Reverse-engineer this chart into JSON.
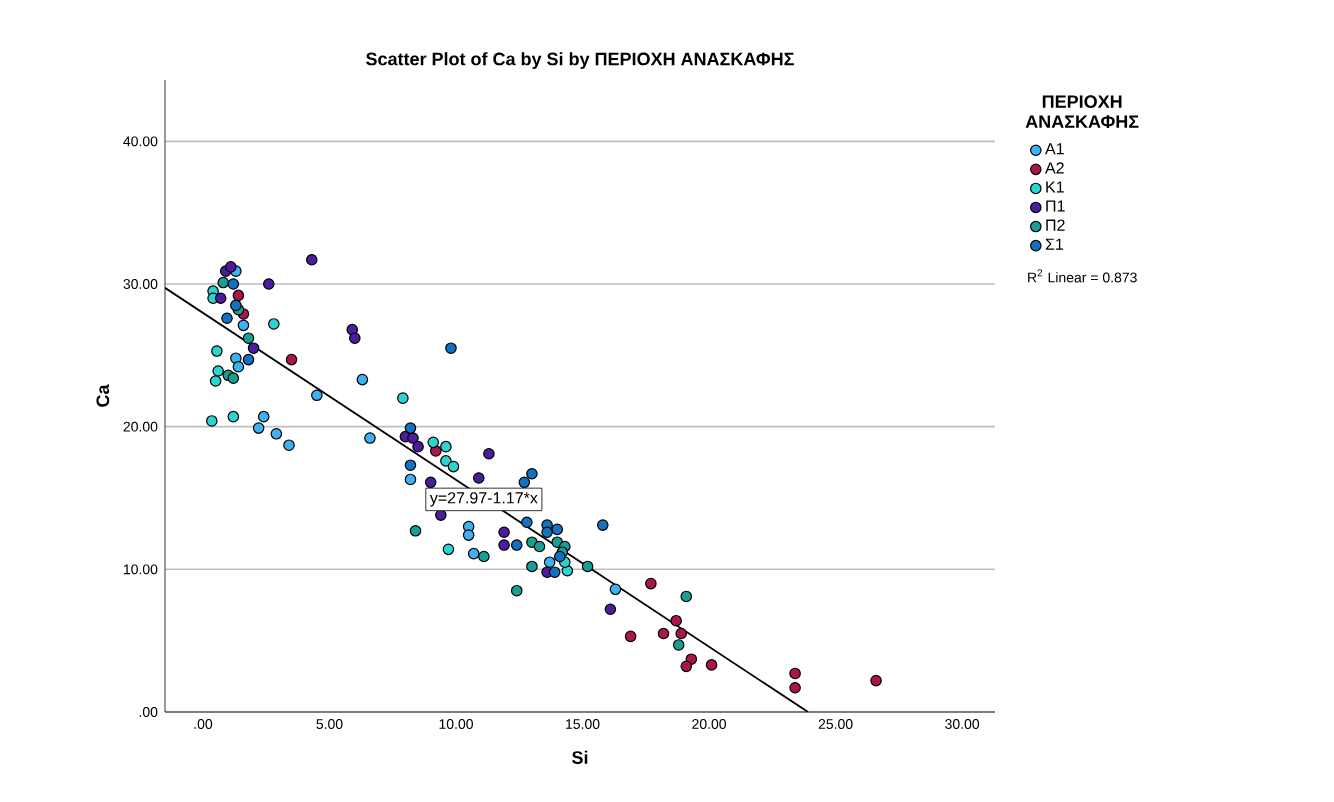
{
  "chart_data": {
    "type": "scatter",
    "title": "Scatter Plot of Ca by Si by ΠΕΡΙΟΧΗ ΑΝΑΣΚΑΦΗΣ",
    "xlabel": "Si",
    "ylabel": "Ca",
    "legend_title": "ΠΕΡΙΟΧΗ ΑΝΑΣΚΑΦΗΣ",
    "xlim": [
      -1.5,
      31.3
    ],
    "ylim": [
      0,
      44.3
    ],
    "xticks": [
      {
        "value": 0,
        "label": ".00"
      },
      {
        "value": 5,
        "label": "5.00"
      },
      {
        "value": 10,
        "label": "10.00"
      },
      {
        "value": 15,
        "label": "15.00"
      },
      {
        "value": 20,
        "label": "20.00"
      },
      {
        "value": 25,
        "label": "25.00"
      },
      {
        "value": 30,
        "label": "30.00"
      }
    ],
    "yticks": [
      {
        "value": 0,
        "label": ".00"
      },
      {
        "value": 10,
        "label": "10.00"
      },
      {
        "value": 20,
        "label": "20.00"
      },
      {
        "value": 30,
        "label": "30.00"
      },
      {
        "value": 40,
        "label": "40.00"
      }
    ],
    "grid": "y",
    "legend": "right",
    "marker": "circle",
    "series": [
      {
        "name": "Α1",
        "color": "#3fb0f0",
        "x": [
          1.3,
          1.6,
          1.3,
          1.4,
          4.5,
          2.4,
          2.2,
          2.9,
          3.4,
          6.3,
          6.6,
          8.2,
          10.5,
          10.5,
          10.7,
          13.7,
          16.3
        ],
        "values": [
          30.9,
          27.1,
          24.8,
          24.2,
          22.2,
          20.7,
          19.9,
          19.5,
          18.7,
          23.3,
          19.2,
          16.3,
          13.0,
          12.4,
          11.1,
          10.5,
          8.6
        ]
      },
      {
        "name": "Α2",
        "color": "#a8164a",
        "x": [
          1.4,
          1.6,
          3.5,
          9.2,
          17.7,
          18.7,
          18.9,
          18.2,
          16.9,
          19.3,
          19.1,
          20.1,
          23.4,
          23.4,
          26.6
        ],
        "values": [
          29.2,
          27.9,
          24.7,
          18.3,
          9.0,
          6.4,
          5.5,
          5.5,
          5.3,
          3.7,
          3.2,
          3.3,
          2.7,
          1.7,
          2.2
        ]
      },
      {
        "name": "Κ1",
        "color": "#2ed3d0",
        "x": [
          0.4,
          0.4,
          2.8,
          0.55,
          0.6,
          0.5,
          0.35,
          1.2,
          7.9,
          9.1,
          9.6,
          9.6,
          9.9,
          9.7,
          14.4,
          14.3
        ],
        "values": [
          29.5,
          29.0,
          27.2,
          25.3,
          23.9,
          23.2,
          20.4,
          20.7,
          22.0,
          18.9,
          18.6,
          17.6,
          17.2,
          11.4,
          9.9,
          10.5
        ]
      },
      {
        "name": "Π1",
        "color": "#4b1d9e",
        "x": [
          0.9,
          1.1,
          0.7,
          2.6,
          4.3,
          2.0,
          5.9,
          6.0,
          8.0,
          8.3,
          8.5,
          11.3,
          9.0,
          10.9,
          9.4,
          11.9,
          11.9,
          13.6,
          16.1
        ],
        "values": [
          30.9,
          31.2,
          29.0,
          30.0,
          31.7,
          25.5,
          26.8,
          26.2,
          19.3,
          19.2,
          18.6,
          18.1,
          16.1,
          16.4,
          13.8,
          12.6,
          11.7,
          9.8,
          7.2
        ]
      },
      {
        "name": "Π2",
        "color": "#1a9e94",
        "x": [
          0.8,
          1.4,
          1.8,
          1.0,
          1.2,
          8.4,
          11.1,
          13.0,
          12.4,
          13.0,
          13.3,
          14.0,
          14.3,
          14.2,
          15.2,
          19.1,
          18.8
        ],
        "values": [
          30.1,
          28.2,
          26.2,
          23.6,
          23.4,
          12.7,
          10.9,
          10.2,
          8.5,
          11.9,
          11.6,
          11.9,
          11.6,
          11.2,
          10.2,
          8.1,
          4.7
        ]
      },
      {
        "name": "Σ1",
        "color": "#1670c0",
        "x": [
          1.2,
          1.3,
          0.95,
          1.8,
          9.8,
          8.2,
          8.2,
          13.0,
          12.7,
          12.8,
          12.4,
          13.6,
          14.0,
          13.6,
          15.8,
          14.1,
          13.9
        ],
        "values": [
          30.0,
          28.5,
          27.6,
          24.7,
          25.5,
          19.9,
          17.3,
          16.7,
          16.1,
          13.3,
          11.7,
          13.1,
          12.8,
          12.6,
          13.1,
          10.9,
          9.8
        ]
      },
      {
        "type": "line",
        "marker": "none",
        "color": "#000000",
        "x": [
          -1.5,
          23.9
        ],
        "values": [
          29.73,
          0.01
        ]
      }
    ],
    "annotations": [
      {
        "text": "y=27.97-1.17*x",
        "x": 11.1,
        "y": 14.9
      },
      "R$^{2}$ Linear = 0.873"
    ]
  }
}
